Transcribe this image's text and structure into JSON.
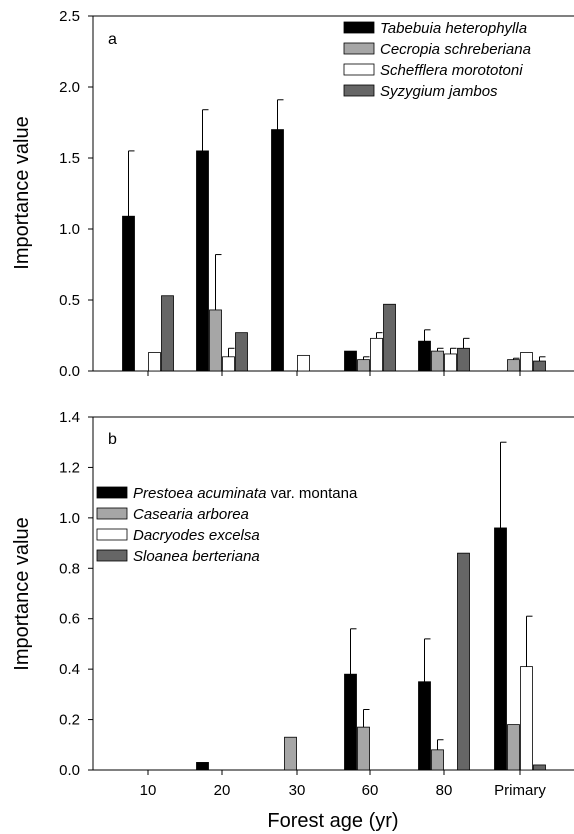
{
  "chart_data": [
    {
      "type": "bar",
      "panel_label": "a",
      "categories": [
        "10",
        "20",
        "30",
        "60",
        "80",
        "Primary"
      ],
      "ylabel": "Importance value",
      "ylim": [
        0,
        2.5
      ],
      "yticks": [
        "0.0",
        "0.5",
        "1.0",
        "1.5",
        "2.0",
        "2.5"
      ],
      "legend_position": "top-right",
      "series": [
        {
          "name": "Tabebuia heterophylla",
          "color": "#000000",
          "values": [
            1.09,
            1.55,
            1.7,
            0.14,
            0.21,
            0
          ],
          "errors": [
            0.46,
            0.29,
            0.21,
            0,
            0.08,
            0
          ]
        },
        {
          "name": "Cecropia schreberiana",
          "color": "#a6a6a6",
          "values": [
            0,
            0.43,
            0,
            0.08,
            0.14,
            0.08
          ],
          "errors": [
            0,
            0.39,
            0,
            0.02,
            0.02,
            0.01
          ]
        },
        {
          "name": "Schefflera morototoni",
          "color": "#ffffff",
          "values": [
            0.13,
            0.1,
            0.11,
            0.23,
            0.12,
            0.13
          ],
          "errors": [
            0,
            0.06,
            0,
            0.04,
            0.04,
            0
          ]
        },
        {
          "name": "Syzygium jambos",
          "color": "#666666",
          "values": [
            0.53,
            0.27,
            0,
            0.47,
            0.16,
            0.07
          ],
          "errors": [
            0,
            0,
            0,
            0,
            0.07,
            0.03
          ]
        }
      ]
    },
    {
      "type": "bar",
      "panel_label": "b",
      "categories": [
        "10",
        "20",
        "30",
        "60",
        "80",
        "Primary"
      ],
      "xlabel": "Forest age (yr)",
      "ylabel": "Importance value",
      "ylim": [
        0,
        1.4
      ],
      "yticks": [
        "0.0",
        "0.2",
        "0.4",
        "0.6",
        "0.8",
        "1.0",
        "1.2",
        "1.4"
      ],
      "legend_position": "upper-left",
      "series": [
        {
          "name": "Prestoea acuminata",
          "name_suffix": " var. montana",
          "color": "#000000",
          "values": [
            0,
            0.03,
            0,
            0.38,
            0.35,
            0.96
          ],
          "errors": [
            0,
            0,
            0,
            0.18,
            0.17,
            0.34
          ]
        },
        {
          "name": "Casearia arborea",
          "color": "#a6a6a6",
          "values": [
            0,
            0,
            0.13,
            0.17,
            0.08,
            0.18
          ],
          "errors": [
            0,
            0,
            0,
            0.07,
            0.04,
            0
          ]
        },
        {
          "name": "Dacryodes excelsa",
          "color": "#ffffff",
          "values": [
            0,
            0,
            0,
            0,
            0,
            0.41
          ],
          "errors": [
            0,
            0,
            0,
            0,
            0,
            0.2
          ]
        },
        {
          "name": "Sloanea berteriana",
          "color": "#666666",
          "values": [
            0,
            0,
            0,
            0,
            0.86,
            0.02
          ],
          "errors": [
            0,
            0,
            0,
            0,
            0,
            0
          ]
        }
      ]
    }
  ]
}
